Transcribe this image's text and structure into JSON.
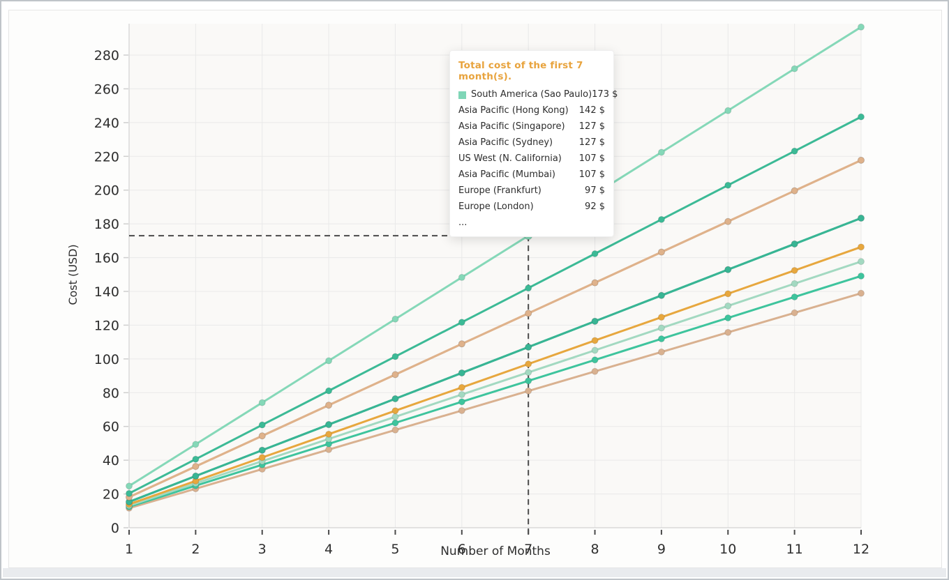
{
  "tooltip": {
    "title": "Total cost of the first 7 month(s).",
    "title_color": "#e8a33d",
    "rows": [
      {
        "label": "South America (Sao Paulo)",
        "value": "173 $",
        "swatch": "#7fd6b7"
      },
      {
        "label": "Asia Pacific (Hong Kong)",
        "value": "142 $"
      },
      {
        "label": "Asia Pacific (Singapore)",
        "value": "127 $"
      },
      {
        "label": "Asia Pacific (Sydney)",
        "value": "127 $"
      },
      {
        "label": "US West (N. California)",
        "value": "107 $"
      },
      {
        "label": "Asia Pacific (Mumbai)",
        "value": "107 $"
      },
      {
        "label": "Europe (Frankfurt)",
        "value": "97 $"
      },
      {
        "label": "Europe (London)",
        "value": "92 $"
      },
      {
        "label": "...",
        "value": ""
      }
    ]
  },
  "chart_data": {
    "type": "line",
    "title": "",
    "xlabel": "Number of Months",
    "ylabel": "Cost (USD)",
    "x": [
      1,
      2,
      3,
      4,
      5,
      6,
      7,
      8,
      9,
      10,
      11,
      12
    ],
    "yticks": [
      0,
      20,
      40,
      60,
      80,
      100,
      120,
      140,
      160,
      180,
      200,
      220,
      240,
      260,
      280
    ],
    "ylim": [
      0,
      290
    ],
    "grid": true,
    "legend_position": "tooltip-overlay",
    "hover": {
      "month": 7,
      "value": 173,
      "series": "South America (Sao Paulo)",
      "crosshair_color": "#4a4a4a"
    },
    "series": [
      {
        "name": "South America (Sao Paulo)",
        "color": "#85d8b8",
        "values": [
          24.7,
          49.4,
          74.1,
          98.9,
          123.6,
          148.3,
          173.0,
          197.7,
          222.4,
          247.1,
          271.9,
          296.6
        ]
      },
      {
        "name": "Asia Pacific (Hong Kong)",
        "color": "#3cba96",
        "values": [
          20.3,
          40.6,
          60.9,
          81.1,
          101.4,
          121.7,
          142.0,
          162.3,
          182.6,
          202.9,
          223.1,
          243.4
        ]
      },
      {
        "name": "Asia Pacific (Singapore)",
        "color": "#dfb28b",
        "values": [
          18.1,
          36.3,
          54.4,
          72.6,
          90.7,
          108.9,
          127.0,
          145.1,
          163.3,
          181.4,
          199.6,
          217.7
        ]
      },
      {
        "name": "Asia Pacific (Sydney)",
        "color": "#dfb28b",
        "values": [
          18.1,
          36.3,
          54.4,
          72.6,
          90.7,
          108.9,
          127.0,
          145.1,
          163.3,
          181.4,
          199.6,
          217.7
        ]
      },
      {
        "name": "US West (N. California)",
        "color": "#38b594",
        "values": [
          15.3,
          30.6,
          45.9,
          61.1,
          76.4,
          91.7,
          107.0,
          122.3,
          137.6,
          152.9,
          168.1,
          183.4
        ]
      },
      {
        "name": "Asia Pacific (Mumbai)",
        "color": "#38b594",
        "values": [
          15.3,
          30.6,
          45.9,
          61.1,
          76.4,
          91.7,
          107.0,
          122.3,
          137.6,
          152.9,
          168.1,
          183.4
        ]
      },
      {
        "name": "Europe (Frankfurt)",
        "color": "#e7a73e",
        "values": [
          13.9,
          27.7,
          41.6,
          55.4,
          69.3,
          83.1,
          97.0,
          110.9,
          124.7,
          138.6,
          152.4,
          166.3
        ]
      },
      {
        "name": "Europe (London)",
        "color": "#a3d9c1",
        "values": [
          13.1,
          26.3,
          39.4,
          52.6,
          65.7,
          78.9,
          92.0,
          105.1,
          118.3,
          131.4,
          144.6,
          157.7
        ]
      },
      {
        "name": "...",
        "color": "#3ec49d",
        "values": [
          12.4,
          24.9,
          37.3,
          49.7,
          62.1,
          74.6,
          87.0,
          99.4,
          111.9,
          124.3,
          136.7,
          149.1
        ]
      },
      {
        "name": "...",
        "color": "#d9b190",
        "values": [
          11.6,
          23.1,
          34.7,
          46.3,
          57.9,
          69.4,
          81.0,
          92.6,
          104.1,
          115.7,
          127.3,
          138.9
        ]
      }
    ]
  }
}
